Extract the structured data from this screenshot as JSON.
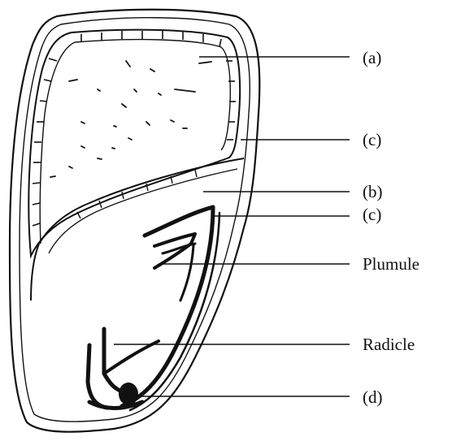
{
  "labels": {
    "a": "(a)",
    "c_top": "(c)",
    "b": "(b)",
    "c_bottom": "(c)",
    "plumule": "Plumule",
    "radicle": "Radicle",
    "d": "(d)"
  },
  "colors": {
    "ink": "#111111",
    "background": "#ffffff"
  }
}
